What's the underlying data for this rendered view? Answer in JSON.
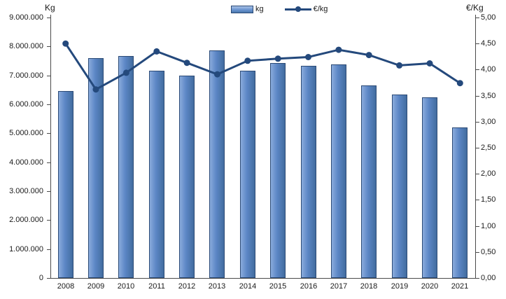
{
  "chart_data": {
    "type": "combo",
    "title": "",
    "categories": [
      "2008",
      "2009",
      "2010",
      "2011",
      "2012",
      "2013",
      "2014",
      "2015",
      "2016",
      "2017",
      "2018",
      "2019",
      "2020",
      "2021"
    ],
    "series": [
      {
        "name": "kg",
        "type": "bar",
        "axis": "left",
        "fill": "#5b86c5",
        "fill_light": "#8aabdc",
        "fill_dark": "#436d9f",
        "border": "#2b4a76",
        "values": [
          6450000,
          7600000,
          7680000,
          7150000,
          6980000,
          7870000,
          7150000,
          7430000,
          7330000,
          7380000,
          6650000,
          6340000,
          6230000,
          5210000
        ]
      },
      {
        "name": "€/kg",
        "type": "line",
        "axis": "right",
        "color": "#24497c",
        "values": [
          4.5,
          3.62,
          3.94,
          4.35,
          4.13,
          3.91,
          4.17,
          4.21,
          4.24,
          4.38,
          4.28,
          4.08,
          4.12,
          3.74
        ]
      }
    ],
    "left_axis": {
      "title": "Kg",
      "min": 0,
      "max": 9000000,
      "ticks": [
        "0",
        "1.000.000",
        "2.000.000",
        "3.000.000",
        "4.000.000",
        "5.000.000",
        "6.000.000",
        "7.000.000",
        "8.000.000",
        "9.000.000"
      ]
    },
    "right_axis": {
      "title": "€/Kg",
      "min": 0,
      "max": 5,
      "ticks": [
        "0,00",
        "0,50",
        "1,00",
        "1,50",
        "2,00",
        "2,50",
        "3,00",
        "3,50",
        "4,00",
        "4,50",
        "5,00"
      ]
    },
    "legend_position": "top-center",
    "grid": false,
    "background": "#ffffff",
    "axis_color": "#4a4a4a",
    "text_color": "#1a1a1a"
  }
}
